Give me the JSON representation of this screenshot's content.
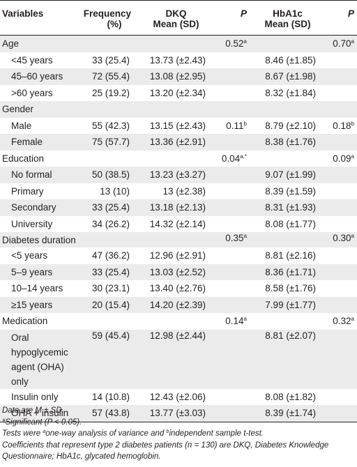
{
  "headers": {
    "variables": "Variables",
    "frequency_1": "Frequency",
    "frequency_2": "(%)",
    "dkq_1": "DKQ",
    "dkq_2": "Mean (SD)",
    "p1": "P",
    "hba1c_1": "HbA1c",
    "hba1c_2": "Mean (SD)",
    "p2": "P"
  },
  "rows": [
    {
      "label": "Age",
      "indent": false,
      "freq": "",
      "dkq": "",
      "p_dkq": "0.52",
      "p_dkq_sup": "a",
      "hba1c": "",
      "p_hba1c": "0.70",
      "p_hba1c_sup": "a",
      "shaded": true
    },
    {
      "label": "<45 years",
      "indent": true,
      "freq": "33 (25.4)",
      "dkq": "13.73 (±2.43)",
      "p_dkq": "",
      "p_dkq_sup": "",
      "hba1c": "8.46 (±1.85)",
      "p_hba1c": "",
      "p_hba1c_sup": "",
      "shaded": false
    },
    {
      "label": "45–60 years",
      "indent": true,
      "freq": "72 (55.4)",
      "dkq": "13.08 (±2.95)",
      "p_dkq": "",
      "p_dkq_sup": "",
      "hba1c": "8.67 (±1.98)",
      "p_hba1c": "",
      "p_hba1c_sup": "",
      "shaded": true
    },
    {
      "label": ">60 years",
      "indent": true,
      "freq": "25 (19.2)",
      "dkq": "13.20 (±2.34)",
      "p_dkq": "",
      "p_dkq_sup": "",
      "hba1c": "8.32 (±1.84)",
      "p_hba1c": "",
      "p_hba1c_sup": "",
      "shaded": false
    },
    {
      "label": "Gender",
      "indent": false,
      "freq": "",
      "dkq": "",
      "p_dkq": "",
      "p_dkq_sup": "",
      "hba1c": "",
      "p_hba1c": "",
      "p_hba1c_sup": "",
      "shaded": true
    },
    {
      "label": "Male",
      "indent": true,
      "freq": "55 (42.3)",
      "dkq": "13.15 (±2.43)",
      "p_dkq": "0.11",
      "p_dkq_sup": "b",
      "hba1c": "8.79 (±2.10)",
      "p_hba1c": "0.18",
      "p_hba1c_sup": "b",
      "shaded": false
    },
    {
      "label": "Female",
      "indent": true,
      "freq": "75 (57.7)",
      "dkq": "13.36 (±2.91)",
      "p_dkq": "",
      "p_dkq_sup": "",
      "hba1c": "8.38 (±1.76)",
      "p_hba1c": "",
      "p_hba1c_sup": "",
      "shaded": true
    },
    {
      "label": "Education",
      "indent": false,
      "freq": "",
      "dkq": "",
      "p_dkq": "0.04",
      "p_dkq_sup": "a,*",
      "hba1c": "",
      "p_hba1c": "0.09",
      "p_hba1c_sup": "a",
      "shaded": false
    },
    {
      "label": "No formal",
      "indent": true,
      "freq": "50 (38.5)",
      "dkq": "13.23 (±3.27)",
      "p_dkq": "",
      "p_dkq_sup": "",
      "hba1c": "9.07 (±1.99)",
      "p_hba1c": "",
      "p_hba1c_sup": "",
      "shaded": true
    },
    {
      "label": "Primary",
      "indent": true,
      "freq": "13 (10)",
      "dkq": "13 (±2.38)",
      "p_dkq": "",
      "p_dkq_sup": "",
      "hba1c": "8.39 (±1.59)",
      "p_hba1c": "",
      "p_hba1c_sup": "",
      "shaded": false
    },
    {
      "label": "Secondary",
      "indent": true,
      "freq": "33 (25.4)",
      "dkq": "13.18 (±2.13)",
      "p_dkq": "",
      "p_dkq_sup": "",
      "hba1c": "8.31 (±1.93)",
      "p_hba1c": "",
      "p_hba1c_sup": "",
      "shaded": true
    },
    {
      "label": "University",
      "indent": true,
      "freq": "34 (26.2)",
      "dkq": "14.32 (±2.14)",
      "p_dkq": "",
      "p_dkq_sup": "",
      "hba1c": "8.08 (±1.77)",
      "p_hba1c": "",
      "p_hba1c_sup": "",
      "shaded": false
    },
    {
      "label": "Diabetes duration",
      "indent": false,
      "wrap": true,
      "freq": "",
      "dkq": "",
      "p_dkq": "0.35",
      "p_dkq_sup": "a",
      "hba1c": "",
      "p_hba1c": "0.30",
      "p_hba1c_sup": "a",
      "shaded": true
    },
    {
      "label": "<5 years",
      "indent": true,
      "freq": "47 (36.2)",
      "dkq": "12.96 (±2.91)",
      "p_dkq": "",
      "p_dkq_sup": "",
      "hba1c": "8.81 (±2.16)",
      "p_hba1c": "",
      "p_hba1c_sup": "",
      "shaded": false
    },
    {
      "label": "5–9 years",
      "indent": true,
      "freq": "33 (25.4)",
      "dkq": "13.03 (±2.52)",
      "p_dkq": "",
      "p_dkq_sup": "",
      "hba1c": "8.36 (±1.71)",
      "p_hba1c": "",
      "p_hba1c_sup": "",
      "shaded": true
    },
    {
      "label": "10–14 years",
      "indent": true,
      "freq": "30 (23.1)",
      "dkq": "13.40 (±2.76)",
      "p_dkq": "",
      "p_dkq_sup": "",
      "hba1c": "8.58 (±1.76)",
      "p_hba1c": "",
      "p_hba1c_sup": "",
      "shaded": false
    },
    {
      "label": "≥15 years",
      "indent": true,
      "freq": "20 (15.4)",
      "dkq": "14.20 (±2.39)",
      "p_dkq": "",
      "p_dkq_sup": "",
      "hba1c": "7.99 (±1.77)",
      "p_hba1c": "",
      "p_hba1c_sup": "",
      "shaded": true
    },
    {
      "label": "Medication",
      "indent": false,
      "freq": "",
      "dkq": "",
      "p_dkq": "0.14",
      "p_dkq_sup": "a",
      "hba1c": "",
      "p_hba1c": "0.32",
      "p_hba1c_sup": "a",
      "shaded": false
    },
    {
      "label": "Oral hypoglycemic agent (OHA) only",
      "indent": true,
      "wrap": true,
      "freq": "59 (45.4)",
      "dkq": "12.98 (±2.44)",
      "p_dkq": "",
      "p_dkq_sup": "",
      "hba1c": "8.81 (±2.07)",
      "p_hba1c": "",
      "p_hba1c_sup": "",
      "shaded": true
    },
    {
      "label": "Insulin only",
      "indent": true,
      "freq": "14 (10.8)",
      "dkq": "12.43 (±2.06)",
      "p_dkq": "",
      "p_dkq_sup": "",
      "hba1c": "8.08 (±1.82)",
      "p_hba1c": "",
      "p_hba1c_sup": "",
      "shaded": false
    },
    {
      "label": "OHA + insulin",
      "indent": true,
      "freq": "57 (43.8)",
      "dkq": "13.77 (±3.03)",
      "p_dkq": "",
      "p_dkq_sup": "",
      "hba1c": "8.39 (±1.74)",
      "p_hba1c": "",
      "p_hba1c_sup": "",
      "shaded": true
    }
  ],
  "notes": {
    "line1": "Data are M ± SD.",
    "line2_star": "*",
    "line2": "Significant (P < 0.05).",
    "line3_a": "Tests were ",
    "line3_sup_a": "a",
    "line3_b": "one-way analysis of variance and ",
    "line3_sup_b": "b",
    "line3_c": "independent sample t-test.",
    "line4": "Coefficients that represent type 2 diabetes patients (n = 130) are DKQ, Diabetes Knowledge Questionnaire; HbA1c, glycated hemoglobin."
  },
  "colors": {
    "shade": "#ebebeb",
    "text": "#231f20",
    "rule": "#231f20"
  }
}
